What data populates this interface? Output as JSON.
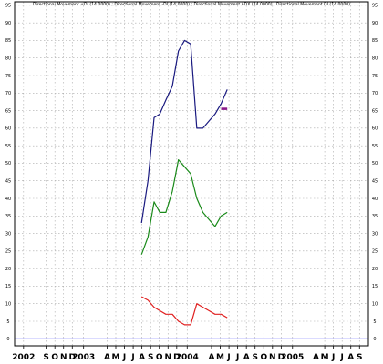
{
  "chart_data": {
    "type": "line",
    "title": "Directional Movement +DI (14.0000) ; Directional Movement -DI (14.0000) ; Directional Movement ADX (14.0000) ; Directional Movement DI (14.0000)",
    "xlabel": "",
    "ylabel": "",
    "ylim": [
      -2,
      96
    ],
    "yticks": [
      0,
      5,
      10,
      15,
      20,
      25,
      30,
      35,
      40,
      45,
      50,
      55,
      60,
      65,
      70,
      75,
      80,
      85,
      90,
      95
    ],
    "grid": true,
    "x_ticks": [
      {
        "label": "2002",
        "i": 0.4
      },
      {
        "label": "S",
        "i": 3
      },
      {
        "label": "O",
        "i": 4
      },
      {
        "label": "N",
        "i": 5
      },
      {
        "label": "D",
        "i": 6
      },
      {
        "label": "2003",
        "i": 7.3
      },
      {
        "label": "A",
        "i": 10
      },
      {
        "label": "M",
        "i": 11
      },
      {
        "label": "J",
        "i": 12
      },
      {
        "label": "J",
        "i": 13
      },
      {
        "label": "A",
        "i": 14
      },
      {
        "label": "S",
        "i": 15
      },
      {
        "label": "O",
        "i": 16
      },
      {
        "label": "N",
        "i": 17
      },
      {
        "label": "D",
        "i": 18
      },
      {
        "label": "2004",
        "i": 19.2
      },
      {
        "label": "A",
        "i": 22
      },
      {
        "label": "M",
        "i": 23
      },
      {
        "label": "J",
        "i": 24
      },
      {
        "label": "J",
        "i": 25
      },
      {
        "label": "A",
        "i": 26
      },
      {
        "label": "S",
        "i": 27
      },
      {
        "label": "O",
        "i": 28
      },
      {
        "label": "N",
        "i": 29
      },
      {
        "label": "D",
        "i": 30
      },
      {
        "label": "2005",
        "i": 31.3
      },
      {
        "label": "A",
        "i": 34
      },
      {
        "label": "M",
        "i": 35
      },
      {
        "label": "J",
        "i": 36
      },
      {
        "label": "J",
        "i": 37
      },
      {
        "label": "A",
        "i": 38
      },
      {
        "label": "S",
        "i": 39
      }
    ],
    "series": [
      {
        "color": "#1a1a80",
        "points": [
          [
            13.95,
            33
          ],
          [
            14.7,
            45
          ],
          [
            15.4,
            63
          ],
          [
            16.05,
            64
          ],
          [
            16.75,
            68
          ],
          [
            17.5,
            72
          ],
          [
            18.2,
            82
          ],
          [
            18.9,
            85
          ],
          [
            19.6,
            84
          ],
          [
            20.3,
            60
          ],
          [
            21.0,
            60
          ],
          [
            21.7,
            62
          ],
          [
            22.4,
            64
          ],
          [
            23.1,
            67
          ],
          [
            23.8,
            71
          ]
        ]
      },
      {
        "color": "#1a8a1a",
        "points": [
          [
            13.95,
            24
          ],
          [
            14.7,
            29
          ],
          [
            15.4,
            39
          ],
          [
            16.05,
            36
          ],
          [
            16.75,
            36
          ],
          [
            17.5,
            42
          ],
          [
            18.2,
            51
          ],
          [
            18.9,
            49
          ],
          [
            19.6,
            47
          ],
          [
            20.3,
            40
          ],
          [
            21.0,
            36
          ],
          [
            21.7,
            34
          ],
          [
            22.4,
            32
          ],
          [
            23.1,
            35
          ],
          [
            23.8,
            36
          ]
        ]
      },
      {
        "color": "#e02020",
        "points": [
          [
            13.95,
            12
          ],
          [
            14.7,
            11
          ],
          [
            15.4,
            9
          ],
          [
            16.05,
            8
          ],
          [
            16.75,
            7
          ],
          [
            17.5,
            7
          ],
          [
            18.2,
            5
          ],
          [
            18.9,
            4
          ],
          [
            19.6,
            4
          ],
          [
            20.3,
            10
          ],
          [
            21.0,
            9
          ],
          [
            21.7,
            8
          ],
          [
            22.4,
            7
          ],
          [
            23.1,
            7
          ],
          [
            23.8,
            6
          ]
        ]
      },
      {
        "color": "#8a1a8a",
        "points": [
          [
            23.1,
            65.5
          ],
          [
            23.8,
            65.5
          ]
        ]
      }
    ],
    "zero_line_color": "#7070ff"
  }
}
